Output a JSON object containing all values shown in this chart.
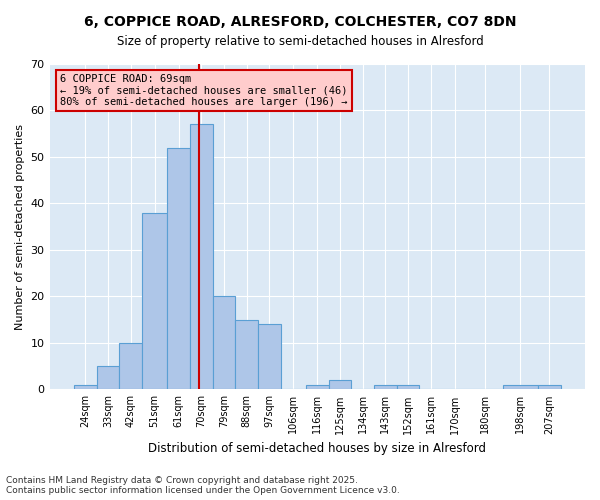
{
  "title1": "6, COPPICE ROAD, ALRESFORD, COLCHESTER, CO7 8DN",
  "title2": "Size of property relative to semi-detached houses in Alresford",
  "xlabel": "Distribution of semi-detached houses by size in Alresford",
  "ylabel": "Number of semi-detached properties",
  "annotation_title": "6 COPPICE ROAD: 69sqm",
  "annotation_line1": "← 19% of semi-detached houses are smaller (46)",
  "annotation_line2": "80% of semi-detached houses are larger (196) →",
  "property_size": 69,
  "bin_labels": [
    "24sqm",
    "33sqm",
    "42sqm",
    "51sqm",
    "61sqm",
    "70sqm",
    "79sqm",
    "88sqm",
    "97sqm",
    "106sqm",
    "116sqm",
    "125sqm",
    "134sqm",
    "143sqm",
    "152sqm",
    "161sqm",
    "170sqm",
    "180sqm",
    "198sqm",
    "207sqm"
  ],
  "bin_edges": [
    19.5,
    28.5,
    37.5,
    46.5,
    56.5,
    65.5,
    74.5,
    83.5,
    92.5,
    101.5,
    111.5,
    120.5,
    129.5,
    138.5,
    147.5,
    156.5,
    165.5,
    175.5,
    189.5,
    203.5,
    212.5
  ],
  "counts": [
    1,
    5,
    10,
    38,
    52,
    57,
    20,
    15,
    14,
    0,
    1,
    2,
    0,
    1,
    1,
    0,
    0,
    0,
    1,
    1
  ],
  "bar_color": "#aec6e8",
  "bar_edge_color": "#5a9fd4",
  "vline_color": "#cc0000",
  "vline_x": 69,
  "annotation_box_color": "#ffcccc",
  "annotation_box_edge": "#cc0000",
  "background_color": "#dce9f5",
  "footer_text": "Contains HM Land Registry data © Crown copyright and database right 2025.\nContains public sector information licensed under the Open Government Licence v3.0.",
  "ylim": [
    0,
    70
  ],
  "yticks": [
    0,
    10,
    20,
    30,
    40,
    50,
    60,
    70
  ]
}
